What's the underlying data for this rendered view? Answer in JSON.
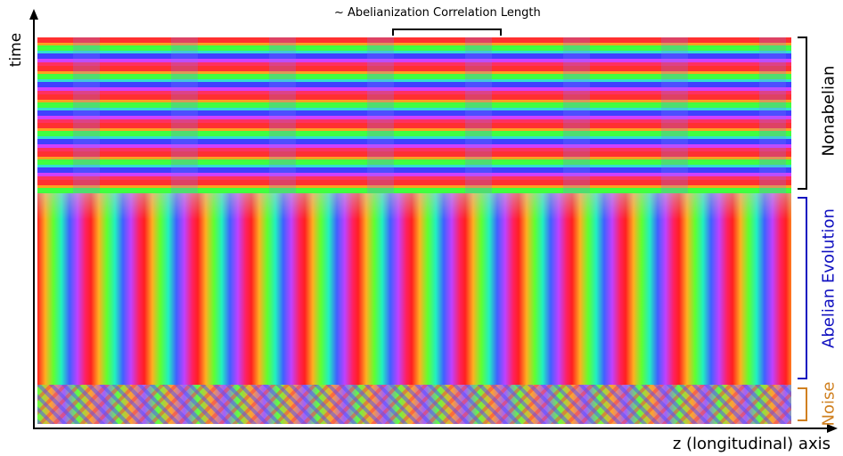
{
  "figure": {
    "y_axis_label": "time",
    "x_axis_label": "z (longitudinal) axis",
    "top_annotation": "~ Abelianization Correlation Length",
    "regions": [
      "Nonabelian",
      "Abelian Evolution",
      "Noise"
    ]
  }
}
